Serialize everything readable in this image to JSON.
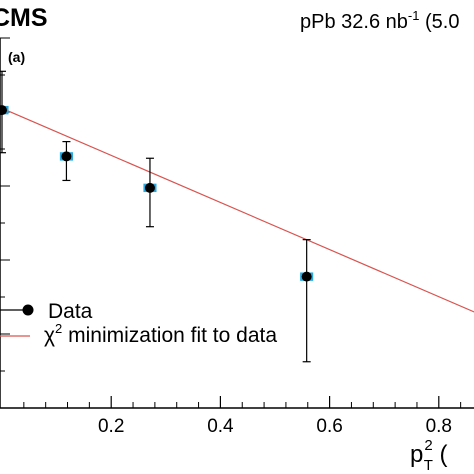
{
  "header": {
    "experiment": "CMS",
    "run_info_prefix": "pPb 32.6 nb",
    "run_info_exp": "-1",
    "run_info_suffix": " (5.0"
  },
  "panel_label": "(a)",
  "legend": {
    "data_label": "Data",
    "fit_label_chi": "χ",
    "fit_label_exp": "2",
    "fit_label_rest": " minimization fit to data"
  },
  "chart_data": {
    "type": "scatter",
    "title": "",
    "xlabel": "p",
    "xlabel_sup": "2",
    "xlabel_sub": "T",
    "xlabel_tail": " (",
    "xlim": [
      0,
      0.9
    ],
    "ylim": [
      0,
      1
    ],
    "xticks": [
      0.2,
      0.4,
      0.6,
      0.8
    ],
    "xtick_labels": [
      "0.2",
      "0.4",
      "0.6",
      "0.8"
    ],
    "series": [
      {
        "name": "Data",
        "x": [
          0.0,
          0.118,
          0.271,
          0.558
        ],
        "y": [
          0.805,
          0.68,
          0.595,
          0.355
        ],
        "err_up": [
          0.105,
          0.04,
          0.08,
          0.1
        ],
        "err_down": [
          0.115,
          0.065,
          0.105,
          0.23
        ],
        "syst_half_width": 0.012,
        "syst_half_height": 0.025
      }
    ],
    "fit": {
      "name": "χ2 minimization fit to data",
      "x": [
        0.0,
        0.88
      ],
      "y": [
        0.81,
        0.25
      ]
    },
    "colors": {
      "marker": "#000000",
      "syst_box": "#29a9e0",
      "fit_line": "#d9534f"
    },
    "grid": false,
    "legend_position": "bottom-left"
  }
}
